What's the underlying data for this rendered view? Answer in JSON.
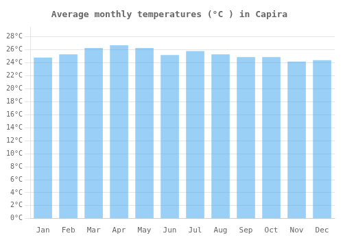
{
  "chart_data": {
    "type": "bar",
    "title": "Average monthly temperatures (°C ) in Capira",
    "categories": [
      "Jan",
      "Feb",
      "Mar",
      "Apr",
      "May",
      "Jun",
      "Jul",
      "Aug",
      "Sep",
      "Oct",
      "Nov",
      "Dec"
    ],
    "values": [
      24.8,
      25.3,
      26.3,
      26.7,
      26.3,
      25.2,
      25.8,
      25.3,
      24.9,
      24.9,
      24.2,
      24.4
    ],
    "ylim": [
      0,
      29.5
    ],
    "yticks": [
      {
        "value": 0,
        "label": "0°C"
      },
      {
        "value": 2,
        "label": "2°C"
      },
      {
        "value": 4,
        "label": "4°C"
      },
      {
        "value": 6,
        "label": "6°C"
      },
      {
        "value": 8,
        "label": "8°C"
      },
      {
        "value": 10,
        "label": "10°C"
      },
      {
        "value": 12,
        "label": "12°C"
      },
      {
        "value": 14,
        "label": "14°C"
      },
      {
        "value": 16,
        "label": "16°C"
      },
      {
        "value": 18,
        "label": "18°C"
      },
      {
        "value": 20,
        "label": "20°C"
      },
      {
        "value": 22,
        "label": "22°C"
      },
      {
        "value": 24,
        "label": "24°C"
      },
      {
        "value": 26,
        "label": "26°C"
      },
      {
        "value": 28,
        "label": "28°C"
      }
    ],
    "grid": true
  }
}
